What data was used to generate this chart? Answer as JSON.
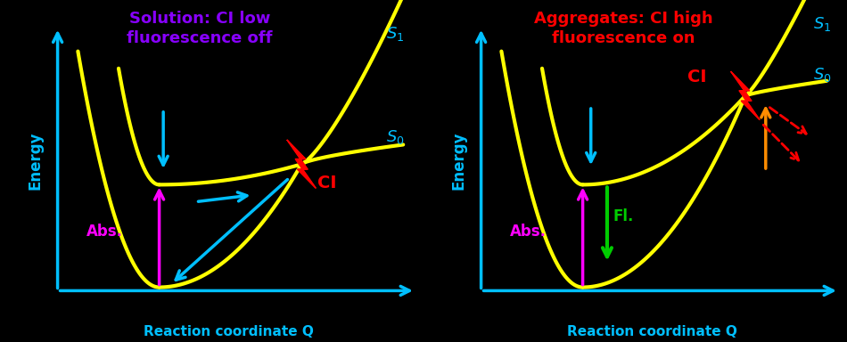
{
  "bg_color": "#000000",
  "curve_color": "#ffff00",
  "axis_color": "#00bfff",
  "title_left": "Solution: CI low\nfluorescence off",
  "title_right": "Aggregates: CI high\nfluorescence on",
  "title_left_color": "#8800ff",
  "title_right_color": "#ff0000",
  "xlabel": "Reaction coordinate Q",
  "ylabel": "Energy",
  "abs_color": "#ff00ff",
  "fl_color": "#00cc00",
  "ci_color": "#ff0000",
  "s0_color": "#00bfff",
  "s1_color": "#00bfff",
  "arrow_color": "#00bfff",
  "dashed_arrow_color": "#ff0000",
  "orange_arrow_color": "#ff8c00"
}
